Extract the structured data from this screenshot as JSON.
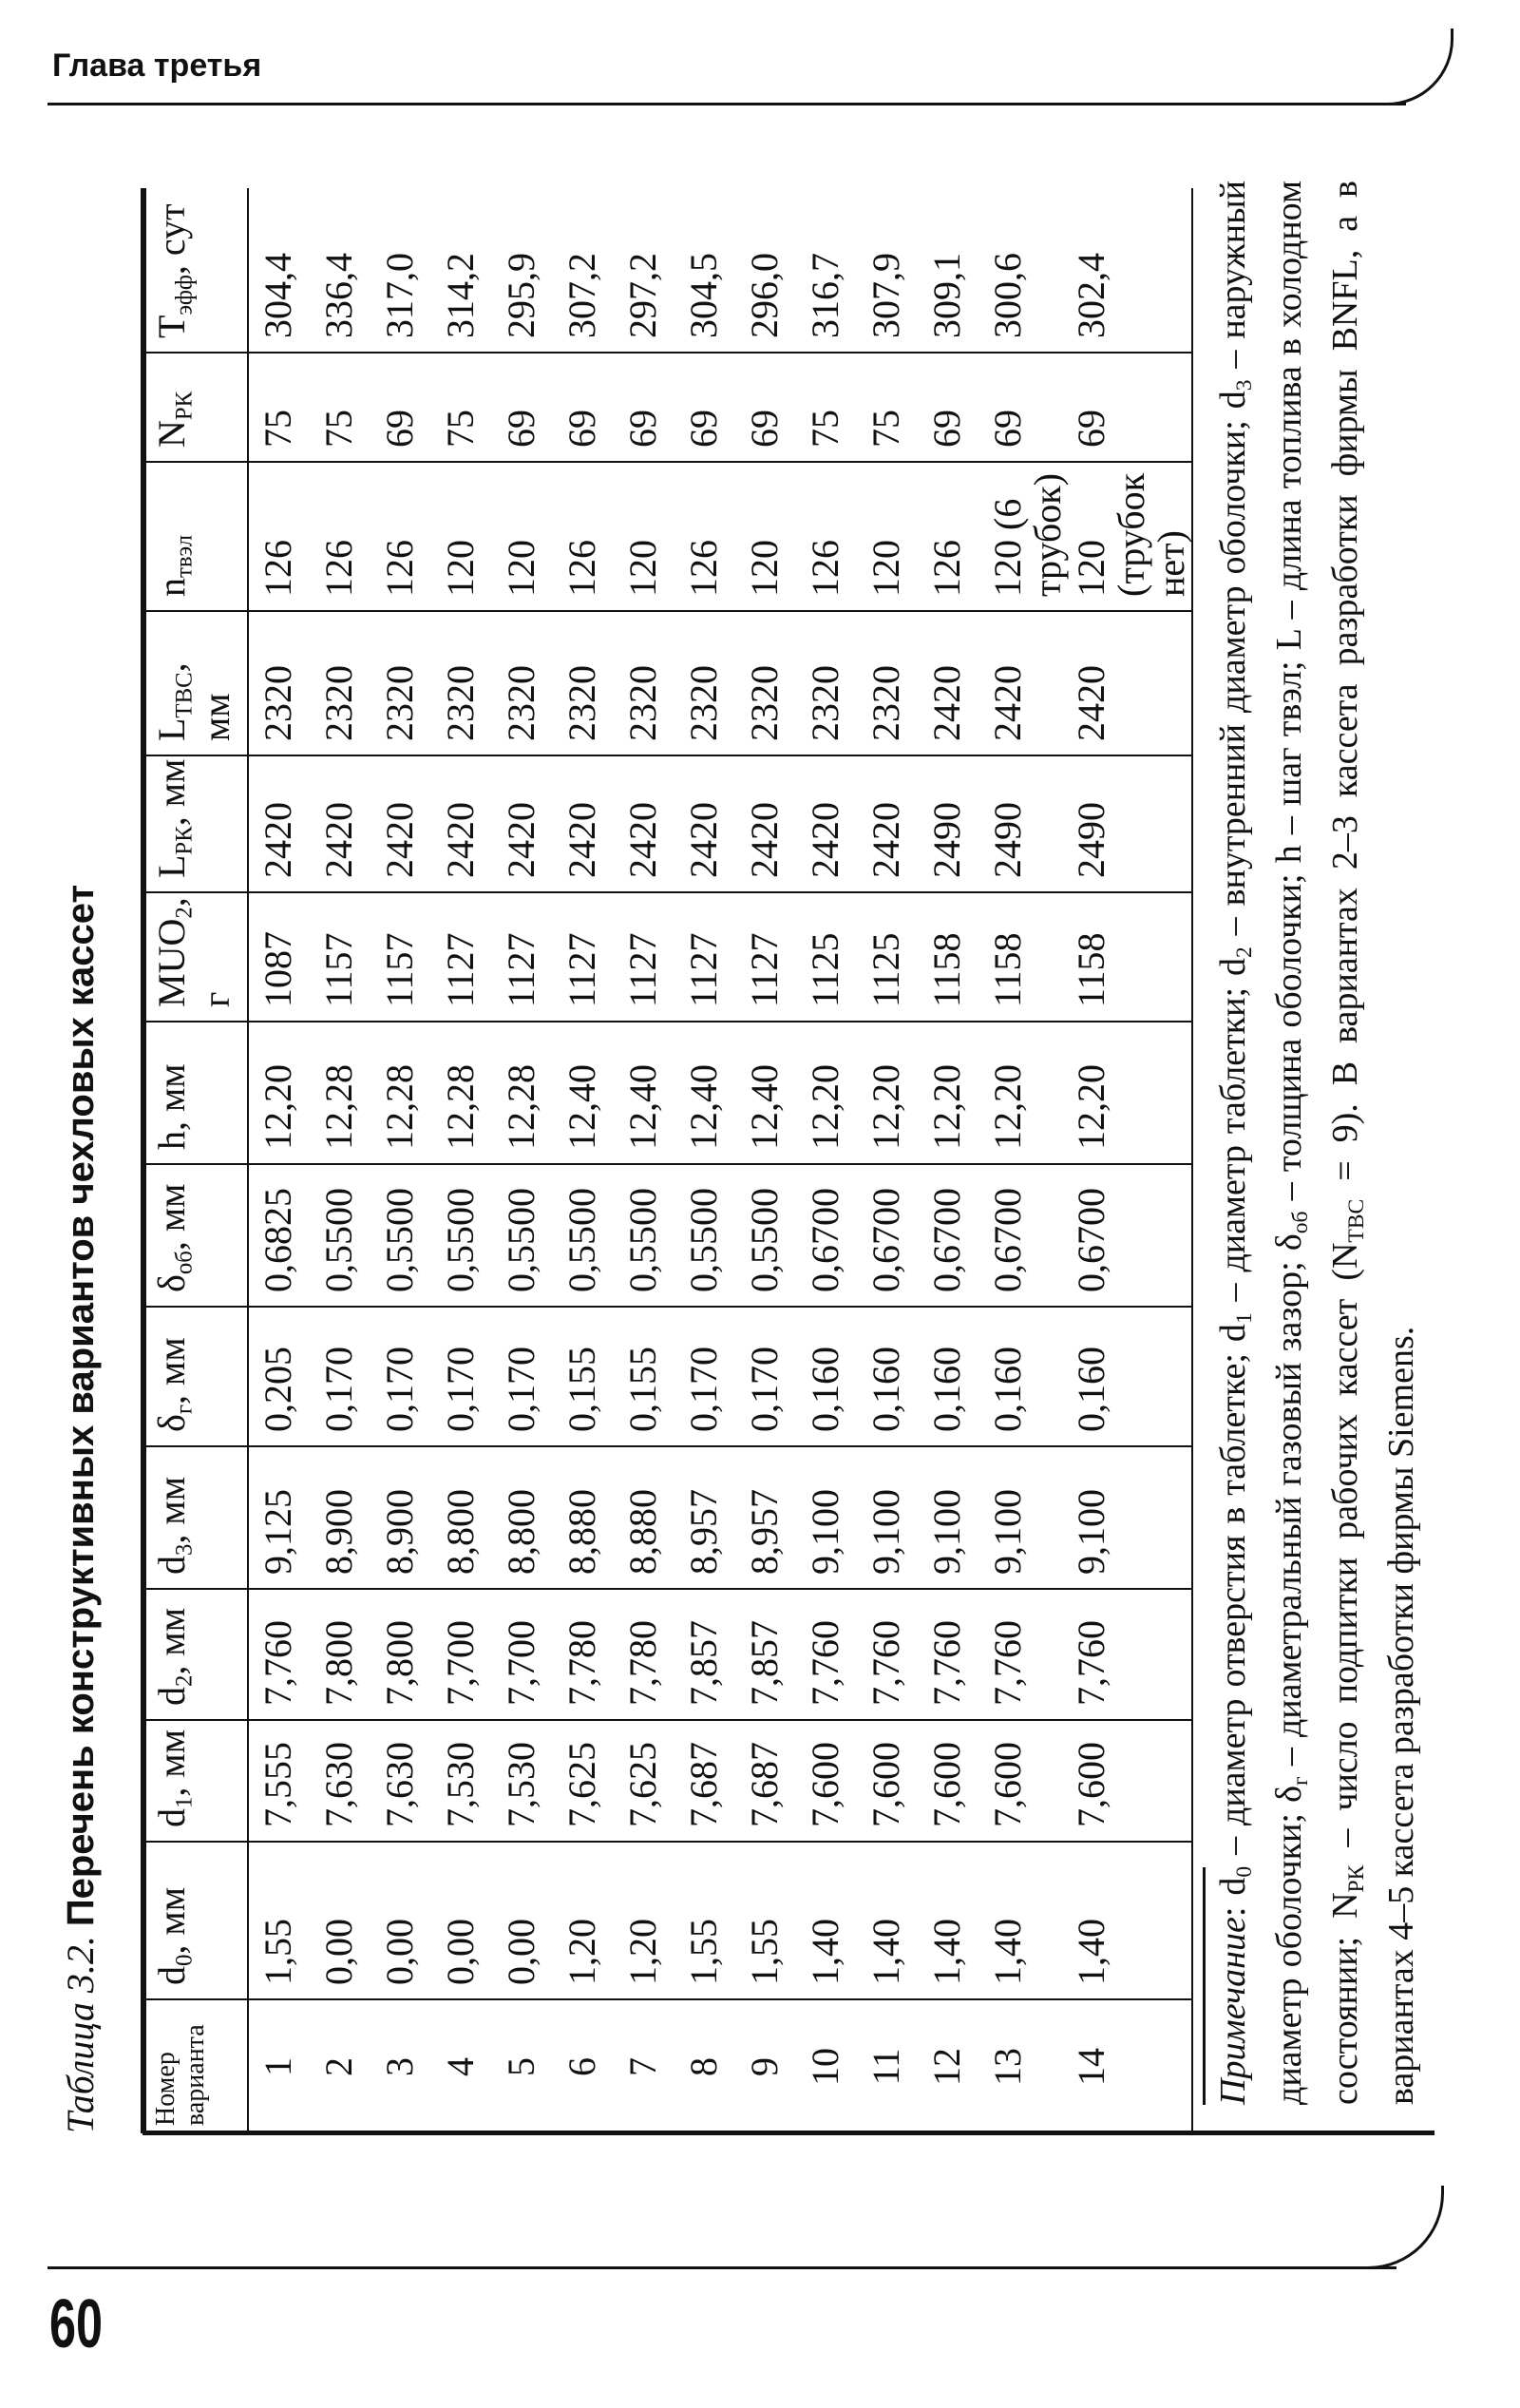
{
  "header": {
    "chapter": "Глава третья"
  },
  "page_number": "60",
  "caption": {
    "label": "Таблица 3.2.",
    "title": "Перечень конструктивных вариантов чехловых кассет"
  },
  "table": {
    "columns": [
      {
        "main": "Номер варианта",
        "sub": "",
        "unit": ""
      },
      {
        "main": "d",
        "sub": "0",
        "unit": ", мм"
      },
      {
        "main": "d",
        "sub": "1",
        "unit": ", мм"
      },
      {
        "main": "d",
        "sub": "2",
        "unit": ", мм"
      },
      {
        "main": "d",
        "sub": "3",
        "unit": ", мм"
      },
      {
        "main": "δ",
        "sub": "г",
        "unit": ", мм"
      },
      {
        "main": "δ",
        "sub": "об",
        "unit": ", мм"
      },
      {
        "main": "h, мм",
        "sub": "",
        "unit": ""
      },
      {
        "main": "MUO",
        "sub": "2",
        "unit": ", г"
      },
      {
        "main": "L",
        "sub": "РК",
        "unit": ", мм"
      },
      {
        "main": "L",
        "sub": "ТВС",
        "unit": ", мм"
      },
      {
        "main": "n",
        "sub": "твэл",
        "unit": ""
      },
      {
        "main": "N",
        "sub": "РК",
        "unit": ""
      },
      {
        "main": "Т",
        "sub": "эфф",
        "unit": ", сут"
      }
    ],
    "rows": [
      [
        "1",
        "1,55",
        "7,555",
        "7,760",
        "9,125",
        "0,205",
        "0,6825",
        "12,20",
        "1087",
        "2420",
        "2320",
        "126",
        "75",
        "304,4"
      ],
      [
        "2",
        "0,00",
        "7,630",
        "7,800",
        "8,900",
        "0,170",
        "0,5500",
        "12,28",
        "1157",
        "2420",
        "2320",
        "126",
        "75",
        "336,4"
      ],
      [
        "3",
        "0,00",
        "7,630",
        "7,800",
        "8,900",
        "0,170",
        "0,5500",
        "12,28",
        "1157",
        "2420",
        "2320",
        "126",
        "69",
        "317,0"
      ],
      [
        "4",
        "0,00",
        "7,530",
        "7,700",
        "8,800",
        "0,170",
        "0,5500",
        "12,28",
        "1127",
        "2420",
        "2320",
        "120",
        "75",
        "314,2"
      ],
      [
        "5",
        "0,00",
        "7,530",
        "7,700",
        "8,800",
        "0,170",
        "0,5500",
        "12,28",
        "1127",
        "2420",
        "2320",
        "120",
        "69",
        "295,9"
      ],
      [
        "6",
        "1,20",
        "7,625",
        "7,780",
        "8,880",
        "0,155",
        "0,5500",
        "12,40",
        "1127",
        "2420",
        "2320",
        "126",
        "69",
        "307,2"
      ],
      [
        "7",
        "1,20",
        "7,625",
        "7,780",
        "8,880",
        "0,155",
        "0,5500",
        "12,40",
        "1127",
        "2420",
        "2320",
        "120",
        "69",
        "297,2"
      ],
      [
        "8",
        "1,55",
        "7,687",
        "7,857",
        "8,957",
        "0,170",
        "0,5500",
        "12,40",
        "1127",
        "2420",
        "2320",
        "126",
        "69",
        "304,5"
      ],
      [
        "9",
        "1,55",
        "7,687",
        "7,857",
        "8,957",
        "0,170",
        "0,5500",
        "12,40",
        "1127",
        "2420",
        "2320",
        "120",
        "69",
        "296,0"
      ],
      [
        "10",
        "1,40",
        "7,600",
        "7,760",
        "9,100",
        "0,160",
        "0,6700",
        "12,20",
        "1125",
        "2420",
        "2320",
        "126",
        "75",
        "316,7"
      ],
      [
        "11",
        "1,40",
        "7,600",
        "7,760",
        "9,100",
        "0,160",
        "0,6700",
        "12,20",
        "1125",
        "2420",
        "2320",
        "120",
        "75",
        "307,9"
      ],
      [
        "12",
        "1,40",
        "7,600",
        "7,760",
        "9,100",
        "0,160",
        "0,6700",
        "12,20",
        "1158",
        "2490",
        "2420",
        "126",
        "69",
        "309,1"
      ],
      [
        "13",
        "1,40",
        "7,600",
        "7,760",
        "9,100",
        "0,160",
        "0,6700",
        "12,20",
        "1158",
        "2490",
        "2420",
        "120 (6 трубок)",
        "69",
        "300,6"
      ],
      [
        "14",
        "1,40",
        "7,600",
        "7,760",
        "9,100",
        "0,160",
        "0,6700",
        "12,20",
        "1158",
        "2490",
        "2420",
        "120 (трубок нет)",
        "69",
        "302,4"
      ]
    ]
  },
  "note": [
    {
      "t": "Примечание",
      "i": true
    },
    {
      "t": ": d"
    },
    {
      "s": "0"
    },
    {
      "t": " – диаметр отверстия в таблетке; d"
    },
    {
      "s": "1"
    },
    {
      "t": " – диаметр таблетки; d"
    },
    {
      "s": "2"
    },
    {
      "t": " – внутренний диаметр оболочки; d"
    },
    {
      "s": "3"
    },
    {
      "t": " – наружный диаметр оболочки; δ"
    },
    {
      "s": "г"
    },
    {
      "t": " – диаметральный газовый зазор; δ"
    },
    {
      "s": "об"
    },
    {
      "t": " – толщина оболочки; h – шаг твэл; L – длина топлива в холодном состоянии; N"
    },
    {
      "s": "РК"
    },
    {
      "t": " – число подпитки рабочих кассет (N"
    },
    {
      "s": "ТВС"
    },
    {
      "t": " = 9). В вариантах 2–3 кассета разработки фирмы BNFL, а в вариантах 4–5 кассета разработки фирмы Siemens."
    }
  ]
}
